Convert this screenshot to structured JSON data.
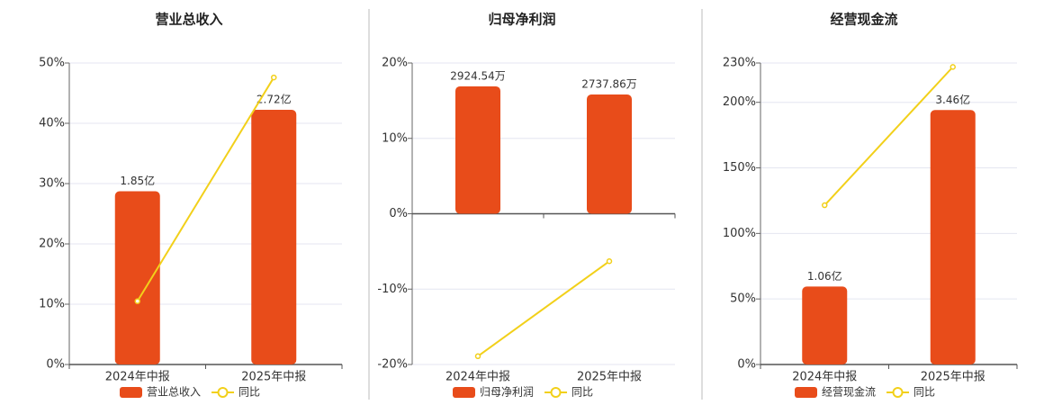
{
  "chart_data": [
    {
      "type": "bar",
      "title": "营业总收入",
      "categories": [
        "2024年中报",
        "2025年中报"
      ],
      "series": [
        {
          "name": "营业总收入",
          "type": "bar",
          "color": "#e84c1a",
          "axis": "y2",
          "values": [
            1.85,
            2.72
          ],
          "value_labels": [
            "1.85亿",
            "2.72亿"
          ]
        },
        {
          "name": "同比",
          "type": "line",
          "color": "#f2d01a",
          "values": [
            10.5,
            47.6
          ]
        }
      ],
      "ylim": [
        0,
        50
      ],
      "yticks": [
        {
          "value": 0,
          "label": "0%"
        },
        {
          "value": 10,
          "label": "10%"
        },
        {
          "value": 20,
          "label": "20%"
        },
        {
          "value": 30,
          "label": "30%"
        },
        {
          "value": 40,
          "label": "40%"
        },
        {
          "value": 50,
          "label": "50%"
        }
      ],
      "y2lim": [
        0,
        3.22
      ],
      "grid": true
    },
    {
      "type": "bar",
      "title": "归母净利润",
      "categories": [
        "2024年中报",
        "2025年中报"
      ],
      "series": [
        {
          "name": "归母净利润",
          "type": "bar",
          "color": "#e84c1a",
          "axis": "y2",
          "values": [
            2924.54,
            2737.86
          ],
          "value_labels": [
            "2924.54万",
            "2737.86万"
          ]
        },
        {
          "name": "同比",
          "type": "line",
          "color": "#f2d01a",
          "values": [
            -18.9,
            -6.3
          ]
        }
      ],
      "ylim": [
        -20,
        20
      ],
      "yticks": [
        {
          "value": -20,
          "label": "-20%"
        },
        {
          "value": -10,
          "label": "-10%"
        },
        {
          "value": 0,
          "label": "0%"
        },
        {
          "value": 10,
          "label": "10%"
        },
        {
          "value": 20,
          "label": "20%"
        }
      ],
      "y2lim": [
        -3461,
        3461
      ],
      "grid": true
    },
    {
      "type": "bar",
      "title": "经营现金流",
      "categories": [
        "2024年中报",
        "2025年中报"
      ],
      "series": [
        {
          "name": "经营现金流",
          "type": "bar",
          "color": "#e84c1a",
          "axis": "y2",
          "values": [
            1.06,
            3.46
          ],
          "value_labels": [
            "1.06亿",
            "3.46亿"
          ]
        },
        {
          "name": "同比",
          "type": "line",
          "color": "#f2d01a",
          "values": [
            121.5,
            227
          ]
        }
      ],
      "ylim": [
        0,
        230
      ],
      "yticks": [
        {
          "value": 0,
          "label": "0%"
        },
        {
          "value": 50,
          "label": "50%"
        },
        {
          "value": 100,
          "label": "100%"
        },
        {
          "value": 150,
          "label": "150%"
        },
        {
          "value": 200,
          "label": "200%"
        },
        {
          "value": 230,
          "label": "230%"
        }
      ],
      "y2lim": [
        0,
        4.1
      ],
      "grid": true
    }
  ]
}
